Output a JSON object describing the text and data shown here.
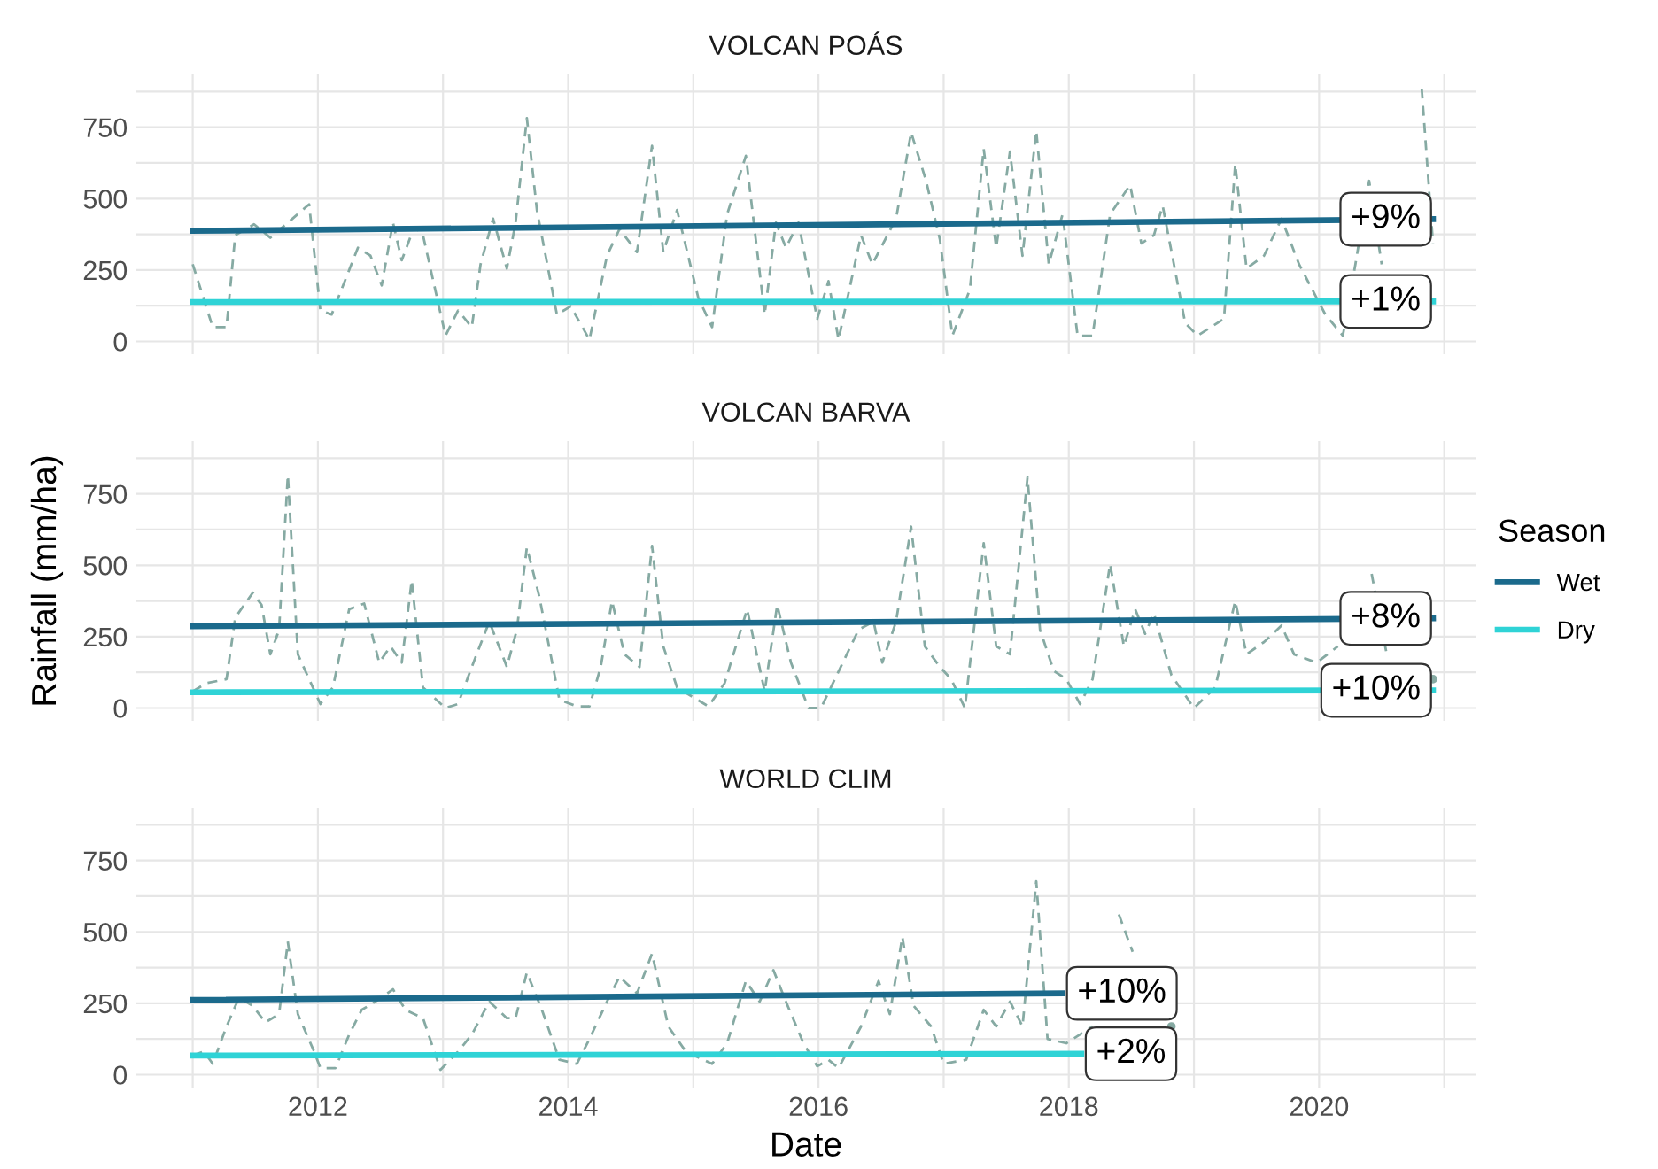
{
  "chart_data": [
    {
      "type": "line",
      "title": "VOLCAN POÁS",
      "xlim": [
        2010.55,
        2021.25
      ],
      "ylim": [
        -45,
        935
      ],
      "xticks": [
        {
          "value": 2011,
          "label": null
        },
        2012,
        {
          "value": 2013,
          "label": null
        },
        2014,
        {
          "value": 2015,
          "label": null
        },
        2016,
        {
          "value": 2017,
          "label": null
        },
        2018,
        {
          "value": 2019,
          "label": null
        },
        2020,
        {
          "value": 2021,
          "label": null
        }
      ],
      "yticks": [
        0,
        {
          "value": 125,
          "label": null
        },
        250,
        {
          "value": 375,
          "label": null
        },
        500,
        {
          "value": 625,
          "label": null
        },
        750,
        {
          "value": 875,
          "label": null
        }
      ],
      "grid": true,
      "tick_labels": "y",
      "series": [
        {
          "color": "#86aaa3",
          "line_style": "dashed",
          "x": [
            2011.0,
            2011.16,
            2011.27,
            2011.34,
            2011.49,
            2011.62,
            2011.93,
            2012.02,
            2012.11,
            2012.32,
            2012.42,
            2012.51,
            2012.6,
            2012.67,
            2012.77,
            2012.84,
            2013.02,
            2013.12,
            2013.23,
            2013.3,
            2013.4,
            2013.51,
            2013.58,
            2013.67,
            2013.75,
            2013.91,
            2014.02,
            2014.17,
            2014.31,
            2014.41,
            2014.55,
            2014.67,
            2014.76,
            2014.87,
            2015.04,
            2015.15,
            2015.27,
            2015.42,
            2015.57,
            2015.66,
            2015.74,
            2015.84,
            2015.99,
            2016.08,
            2016.16,
            2016.34,
            2016.43,
            2016.62,
            2016.74,
            2016.86,
            2016.97,
            2017.07,
            2017.21,
            2017.32,
            2017.42,
            2017.53,
            2017.63,
            2017.74,
            2017.84,
            2017.95,
            2018.07,
            2018.19,
            2018.33,
            2018.49,
            2018.58,
            2018.68,
            2018.75,
            2018.93,
            2019.03,
            2019.24,
            2019.33,
            2019.42,
            2019.56,
            2019.7,
            2019.84,
            2020.05,
            2020.19,
            2020.29,
            2020.4,
            2020.5,
            2020.64,
            2020.82,
            2020.91
          ],
          "values": [
            270,
            50,
            50,
            372,
            410,
            363,
            480,
            108,
            94,
            328,
            300,
            196,
            416,
            284,
            401,
            372,
            20,
            108,
            50,
            270,
            430,
            255,
            416,
            782,
            460,
            94,
            123,
            6,
            300,
            393,
            313,
            685,
            313,
            460,
            152,
            50,
            445,
            650,
            94,
            416,
            328,
            416,
            79,
            211,
            6,
            372,
            270,
            430,
            732,
            562,
            357,
            20,
            182,
            674,
            328,
            665,
            300,
            738,
            270,
            445,
            20,
            20,
            445,
            548,
            343,
            372,
            475,
            64,
            20,
            79,
            621,
            255,
            300,
            430,
            270,
            94,
            20,
            270,
            562,
            270,
            null,
            885,
            343
          ]
        },
        {
          "color": "#1b6a8c",
          "line_style": "solid",
          "x": [
            2011.0,
            2020.91
          ],
          "values": [
            387,
            428
          ]
        },
        {
          "color": "#2fd3d6",
          "line_style": "solid",
          "x": [
            2011.0,
            2020.91
          ],
          "values": [
            138,
            140
          ]
        }
      ],
      "annotations": [
        {
          "text": "+9%",
          "x": 2020.91,
          "y": 428
        },
        {
          "text": "+1%",
          "x": 2020.91,
          "y": 140
        }
      ]
    },
    {
      "type": "line",
      "title": "VOLCAN BARVA",
      "ylabel": "Rainfall (mm/ha)",
      "legend_title": "Season",
      "legend": "right",
      "xlim": [
        2010.55,
        2021.25
      ],
      "ylim": [
        -45,
        935
      ],
      "xticks": [
        {
          "value": 2011,
          "label": null
        },
        2012,
        {
          "value": 2013,
          "label": null
        },
        2014,
        {
          "value": 2015,
          "label": null
        },
        2016,
        {
          "value": 2017,
          "label": null
        },
        2018,
        {
          "value": 2019,
          "label": null
        },
        2020,
        {
          "value": 2021,
          "label": null
        }
      ],
      "yticks": [
        0,
        {
          "value": 125,
          "label": null
        },
        250,
        {
          "value": 375,
          "label": null
        },
        500,
        {
          "value": 625,
          "label": null
        },
        750,
        {
          "value": 875,
          "label": null
        }
      ],
      "grid": true,
      "tick_labels": "y",
      "series": [
        {
          "color": "#86aaa3",
          "line_style": "dashed",
          "x": [
            2011.0,
            2011.11,
            2011.27,
            2011.34,
            2011.48,
            2011.55,
            2011.62,
            2011.69,
            2011.76,
            2011.84,
            2011.93,
            2012.02,
            2012.12,
            2012.25,
            2012.37,
            2012.49,
            2012.58,
            2012.67,
            2012.75,
            2012.84,
            2013.02,
            2013.12,
            2013.23,
            2013.37,
            2013.51,
            2013.59,
            2013.67,
            2013.77,
            2013.93,
            2014.07,
            2014.17,
            2014.26,
            2014.35,
            2014.45,
            2014.57,
            2014.67,
            2014.76,
            2014.87,
            2015.12,
            2015.25,
            2015.43,
            2015.57,
            2015.67,
            2015.78,
            2015.92,
            2016.02,
            2016.32,
            2016.44,
            2016.51,
            2016.62,
            2016.74,
            2016.85,
            2016.97,
            2017.06,
            2017.17,
            2017.32,
            2017.42,
            2017.53,
            2017.67,
            2017.77,
            2017.88,
            2017.98,
            2018.09,
            2018.19,
            2018.33,
            2018.44,
            2018.53,
            2018.61,
            2018.68,
            2018.82,
            2019.0,
            2019.17,
            2019.33,
            2019.42,
            2019.56,
            2019.7,
            2019.8,
            2019.98,
            2020.15,
            2020.29,
            2020.42,
            2020.54,
            2020.68,
            2020.78,
            2020.91
          ],
          "values": [
            58,
            87,
            101,
            317,
            404,
            361,
            188,
            274,
            816,
            188,
            101,
            14,
            72,
            346,
            366,
            159,
            216,
            159,
            447,
            72,
            0,
            14,
            144,
            303,
            144,
            274,
            563,
            389,
            29,
            6,
            6,
            144,
            375,
            188,
            144,
            568,
            216,
            72,
            6,
            87,
            346,
            58,
            361,
            159,
            0,
            0,
            274,
            303,
            159,
            303,
            635,
            216,
            144,
            101,
            0,
            577,
            216,
            188,
            808,
            274,
            130,
            101,
            14,
            101,
            505,
            216,
            346,
            260,
            332,
            115,
            0,
            72,
            375,
            188,
            231,
            289,
            188,
            159,
            216,
            null,
            470,
            188,
            null,
            null,
            101
          ]
        },
        {
          "name": "Wet",
          "color": "#1b6a8c",
          "line_style": "solid",
          "x": [
            2011.0,
            2020.91
          ],
          "values": [
            286,
            314
          ]
        },
        {
          "name": "Dry",
          "color": "#2fd3d6",
          "line_style": "solid",
          "x": [
            2011.0,
            2020.91
          ],
          "values": [
            55,
            62
          ]
        }
      ],
      "annotations": [
        {
          "text": "+8%",
          "x": 2020.91,
          "y": 314
        },
        {
          "text": "+10%",
          "x": 2020.91,
          "y": 62
        }
      ]
    },
    {
      "type": "line",
      "title": "WORLD CLIM",
      "xlabel": "Date",
      "xlim": [
        2010.55,
        2021.25
      ],
      "ylim": [
        -45,
        935
      ],
      "xticks": [
        {
          "value": 2011,
          "label": null
        },
        2012,
        {
          "value": 2013,
          "label": null
        },
        2014,
        {
          "value": 2015,
          "label": null
        },
        2016,
        {
          "value": 2017,
          "label": null
        },
        2018,
        {
          "value": 2019,
          "label": null
        },
        2020,
        {
          "value": 2021,
          "label": null
        }
      ],
      "yticks": [
        0,
        {
          "value": 125,
          "label": null
        },
        250,
        {
          "value": 375,
          "label": null
        },
        500,
        {
          "value": 625,
          "label": null
        },
        750,
        {
          "value": 875,
          "label": null
        }
      ],
      "grid": true,
      "series": [
        {
          "color": "#86aaa3",
          "line_style": "dashed",
          "x": [
            2011.0,
            2011.09,
            2011.16,
            2011.27,
            2011.37,
            2011.48,
            2011.58,
            2011.69,
            2011.76,
            2011.84,
            2011.97,
            2012.02,
            2012.14,
            2012.25,
            2012.35,
            2012.46,
            2012.6,
            2012.7,
            2012.84,
            2012.98,
            2013.12,
            2013.23,
            2013.37,
            2013.51,
            2013.58,
            2013.67,
            2013.79,
            2013.93,
            2014.07,
            2014.17,
            2014.31,
            2014.41,
            2014.55,
            2014.67,
            2014.8,
            2014.94,
            2015.15,
            2015.27,
            2015.42,
            2015.53,
            2015.64,
            2015.74,
            2015.88,
            2015.99,
            2016.08,
            2016.16,
            2016.34,
            2016.48,
            2016.57,
            2016.67,
            2016.76,
            2016.9,
            2017.0,
            2017.18,
            2017.32,
            2017.42,
            2017.53,
            2017.63,
            2017.74,
            2017.83,
            2017.98,
            2018.19,
            2018.3,
            2018.4,
            2018.51,
            2018.61,
            2018.82
          ],
          "values": [
            67,
            81,
            38,
            169,
            270,
            241,
            183,
            212,
            465,
            212,
            81,
            23,
            23,
            140,
            227,
            256,
            299,
            227,
            198,
            17,
            81,
            140,
            256,
            198,
            198,
            358,
            227,
            52,
            38,
            125,
            256,
            343,
            285,
            424,
            169,
            81,
            38,
            110,
            328,
            256,
            366,
            256,
            110,
            29,
            52,
            23,
            169,
            328,
            212,
            483,
            241,
            169,
            38,
            52,
            227,
            169,
            256,
            169,
            677,
            125,
            110,
            169,
            null,
            561,
            430,
            null,
            169
          ]
        },
        {
          "color": "#1b6a8c",
          "line_style": "solid",
          "x": [
            2011.0,
            2017.95
          ],
          "values": [
            262,
            285
          ]
        },
        {
          "color": "#2fd3d6",
          "line_style": "solid",
          "x": [
            2011.0,
            2018.1
          ],
          "values": [
            67,
            73
          ]
        }
      ],
      "annotations": [
        {
          "text": "+10%",
          "x": 2017.95,
          "y": 285
        },
        {
          "text": "+2%",
          "x": 2018.1,
          "y": 73
        }
      ]
    }
  ]
}
